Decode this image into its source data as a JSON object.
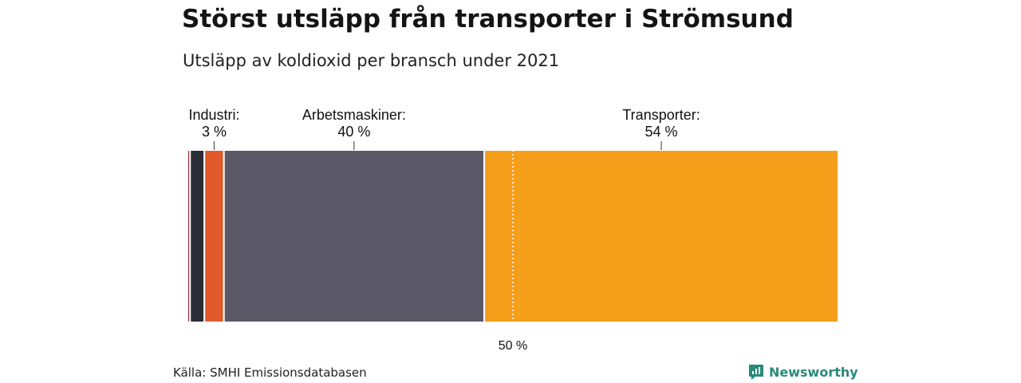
{
  "title": "Störst utsläpp från transporter i Strömsund",
  "subtitle": "Utsläpp av koldioxid per bransch under 2021",
  "source": "Källa: SMHI Emissionsdatabasen",
  "brand": "Newsworthy",
  "chart_data": {
    "type": "stacked-bar-100",
    "orientation": "horizontal",
    "segments": [
      {
        "value": 0.4,
        "color": "#9b2335"
      },
      {
        "value": 2.2,
        "color": "#2c2c36"
      },
      {
        "value": 3.0,
        "color": "#e05a2b",
        "label": "Industri:",
        "value_label": "3 %"
      },
      {
        "value": 40.0,
        "color": "#5a5866",
        "label": "Arbetsmaskiner:",
        "value_label": "40 %"
      },
      {
        "value": 54.4,
        "color": "#f59e1a",
        "label": "Transporter:",
        "value_label": "54 %"
      }
    ],
    "reference_line": {
      "value": 50,
      "label": "50 %",
      "style": "dotted"
    }
  }
}
